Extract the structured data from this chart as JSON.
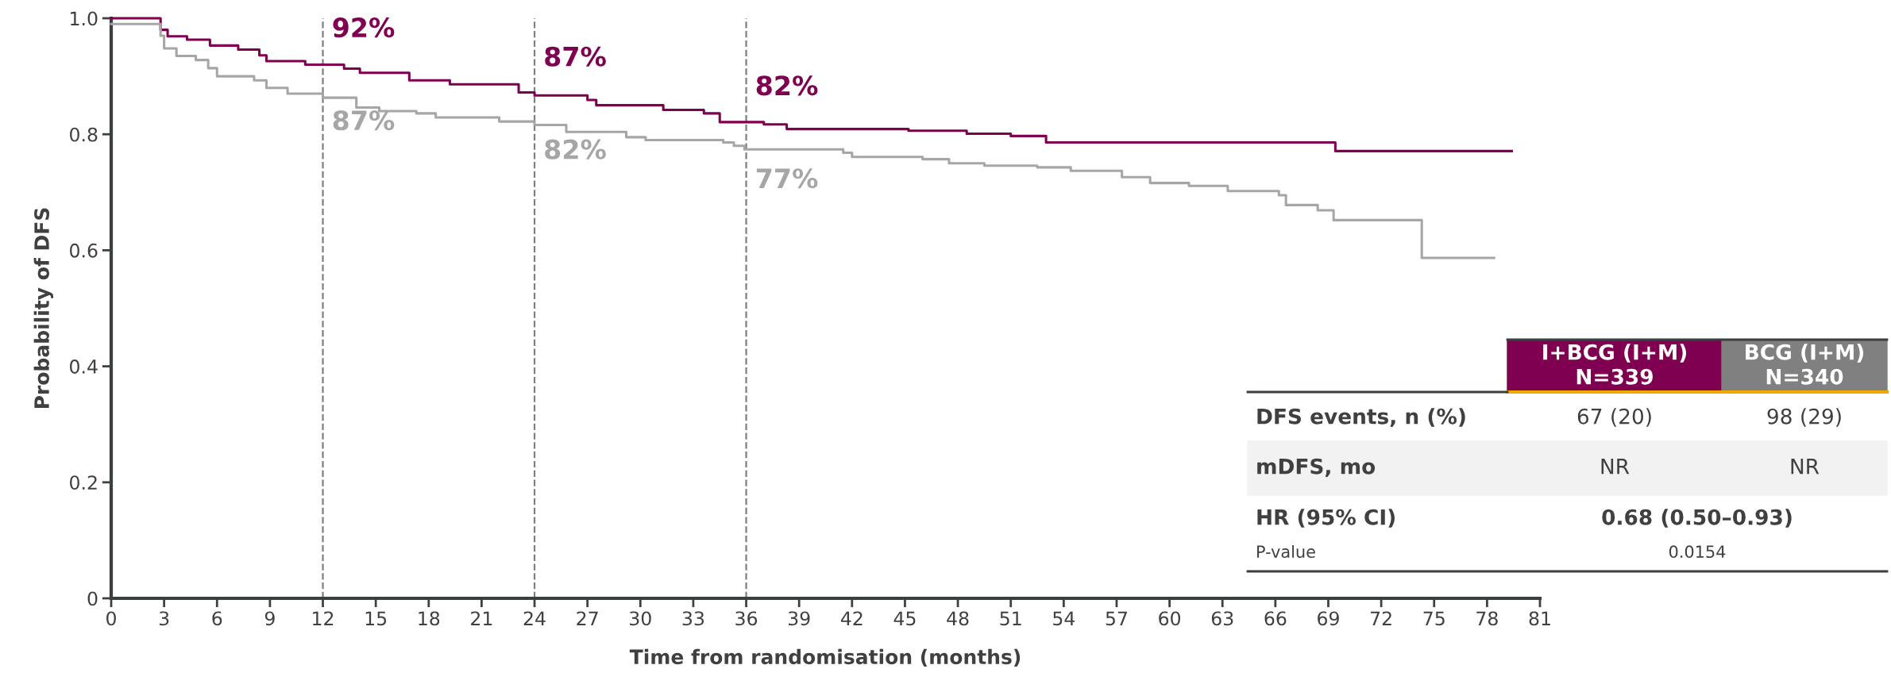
{
  "chart_data": {
    "type": "step",
    "xlabel": "Time from randomisation (months)",
    "ylabel": "Probability of DFS",
    "series": [
      {
        "name": "I+BCG (I+M)",
        "color": "#7f0050",
        "x": [
          0,
          2.8,
          3.2,
          4.3,
          5.6,
          7.2,
          8.4,
          8.8,
          11,
          13.2,
          14.1,
          16.9,
          19.2,
          23.1,
          24,
          27,
          27.5,
          31.3,
          33.6,
          34.5,
          37,
          38.3,
          45.2,
          48.5,
          51,
          53,
          69.4,
          79.4
        ],
        "values": [
          1.0,
          0.98,
          0.969,
          0.963,
          0.953,
          0.946,
          0.936,
          0.926,
          0.92,
          0.913,
          0.906,
          0.893,
          0.886,
          0.872,
          0.867,
          0.859,
          0.85,
          0.842,
          0.836,
          0.821,
          0.817,
          0.809,
          0.806,
          0.801,
          0.797,
          0.786,
          0.771,
          0.771
        ]
      },
      {
        "name": "BCG (I+M)",
        "color": "#a6a6a6",
        "x": [
          0,
          2.8,
          3.0,
          3.7,
          4.8,
          5.5,
          6,
          8.1,
          8.8,
          10,
          12,
          13.9,
          15.2,
          17.3,
          18.4,
          22,
          24,
          25.8,
          29.2,
          30.3,
          34.7,
          35.3,
          35.9,
          41.5,
          42,
          46,
          47.5,
          49.5,
          52.5,
          54.4,
          57.3,
          58.9,
          61.1,
          63.3,
          66.2,
          66.6,
          68.4,
          69.3,
          74.3,
          78.4
        ],
        "values": [
          0.99,
          0.97,
          0.948,
          0.935,
          0.928,
          0.914,
          0.9,
          0.893,
          0.88,
          0.87,
          0.863,
          0.846,
          0.84,
          0.836,
          0.829,
          0.822,
          0.816,
          0.804,
          0.795,
          0.79,
          0.786,
          0.78,
          0.774,
          0.768,
          0.761,
          0.757,
          0.75,
          0.746,
          0.743,
          0.737,
          0.726,
          0.716,
          0.711,
          0.702,
          0.695,
          0.678,
          0.669,
          0.652,
          0.587,
          0.587
        ]
      }
    ],
    "xlim": [
      0,
      81
    ],
    "xticks": [
      0,
      3,
      6,
      9,
      12,
      15,
      18,
      21,
      24,
      27,
      30,
      33,
      36,
      39,
      42,
      45,
      48,
      51,
      54,
      57,
      60,
      63,
      66,
      69,
      72,
      75,
      78,
      81
    ],
    "ylim": [
      0,
      1.0
    ],
    "yticks": [
      0,
      {
        "value": 0.2,
        "label": "0.2"
      },
      {
        "value": 0.4,
        "label": "0.4"
      },
      {
        "value": 0.6,
        "label": "0.6"
      },
      {
        "value": 0.8,
        "label": "0.8"
      },
      {
        "value": 1.0,
        "label": "1.0"
      }
    ],
    "ref_lines": [
      {
        "axis": "x",
        "value": 12,
        "color": "#7f7f7f",
        "line_style": "dashed"
      },
      {
        "axis": "x",
        "value": 24,
        "color": "#7f7f7f",
        "line_style": "dashed"
      },
      {
        "axis": "x",
        "value": 36,
        "color": "#7f7f7f",
        "line_style": "dashed"
      }
    ],
    "annotations": [
      {
        "text": "92%",
        "x": 12,
        "y": 0.92
      },
      {
        "text": "87%",
        "x": 12,
        "y": 0.87
      },
      {
        "text": "87%",
        "x": 24,
        "y": 0.87
      },
      {
        "text": "82%",
        "x": 24,
        "y": 0.82
      },
      {
        "text": "82%",
        "x": 36,
        "y": 0.82
      },
      {
        "text": "77%",
        "x": 36,
        "y": 0.77
      },
      "N=339",
      "N=340",
      "DFS events, n (%)",
      "67 (20)",
      "98 (29)",
      "mDFS, mo",
      "NR",
      "NR",
      "HR (95% CI)",
      "0.68 (0.50–0.93)",
      "P-value",
      "0.0154"
    ],
    "legend": "bottom right",
    "grid": false,
    "line_style": "solid",
    "marker": "none"
  }
}
